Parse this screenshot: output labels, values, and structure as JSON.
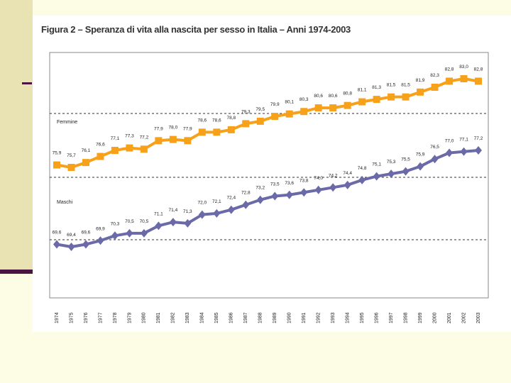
{
  "figure": {
    "title": "Figura 2 – Speranza di vita alla nascita per sesso in Italia – Anni 1974-2003"
  },
  "chart_data": {
    "type": "line",
    "title": "Figura 2 – Speranza di vita alla nascita per sesso in Italia – Anni 1974-2003",
    "xlabel": "",
    "ylabel": "",
    "categories": [
      "1974",
      "1975",
      "1976",
      "1977",
      "1978",
      "1979",
      "1980",
      "1981",
      "1982",
      "1983",
      "1984",
      "1985",
      "1986",
      "1987",
      "1988",
      "1989",
      "1990",
      "1991",
      "1992",
      "1993",
      "1994",
      "1995",
      "1996",
      "1997",
      "1998",
      "1999",
      "2000",
      "2001",
      "2002",
      "2003"
    ],
    "series": [
      {
        "name": "Femmine",
        "color": "#f7a11a",
        "marker": "square",
        "values": [
          75.9,
          75.7,
          76.1,
          76.6,
          77.1,
          77.3,
          77.2,
          77.9,
          78.0,
          77.9,
          78.6,
          78.6,
          78.8,
          79.3,
          79.5,
          79.9,
          80.1,
          80.3,
          80.6,
          80.6,
          80.8,
          81.1,
          81.3,
          81.5,
          81.5,
          81.9,
          82.3,
          82.8,
          83.0,
          82.8
        ],
        "labels": [
          "75,9",
          "75,7",
          "76,1",
          "76,6",
          "77,1",
          "77,3",
          "77,2",
          "77,9",
          "78,0",
          "77,9",
          "78,6",
          "78,6",
          "78,8",
          "79,3",
          "79,5",
          "79,9",
          "80,1",
          "80,3",
          "80,6",
          "80,6",
          "80,8",
          "81,1",
          "81,3",
          "81,5",
          "81,5",
          "81,9",
          "82,3",
          "82,8",
          "83,0",
          "82,8"
        ]
      },
      {
        "name": "Maschi",
        "color": "#6b6aa8",
        "marker": "diamond",
        "values": [
          69.6,
          69.4,
          69.6,
          69.9,
          70.3,
          70.5,
          70.5,
          71.1,
          71.4,
          71.3,
          72.0,
          72.1,
          72.4,
          72.8,
          73.2,
          73.5,
          73.6,
          73.8,
          74.0,
          74.2,
          74.4,
          74.8,
          75.1,
          75.3,
          75.5,
          75.9,
          76.5,
          77.0,
          77.1,
          77.2
        ],
        "labels": [
          "69,6",
          "69,4",
          "69,6",
          "69,9",
          "70,3",
          "70,5",
          "70,5",
          "71,1",
          "71,4",
          "71,3",
          "72,0",
          "72,1",
          "72,4",
          "72,8",
          "73,2",
          "73,5",
          "73,6",
          "73,8",
          "74,0",
          "74,2",
          "74,4",
          "74,8",
          "75,1",
          "75,3",
          "75,5",
          "75,9",
          "76,5",
          "77,0",
          "77,1",
          "77,2"
        ]
      }
    ],
    "grid": "dashed horizontal lines"
  }
}
